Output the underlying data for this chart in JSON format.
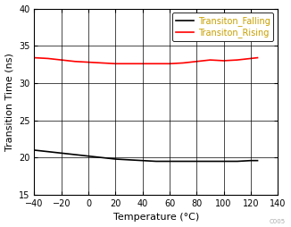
{
  "title": "",
  "xlabel": "Temperature (°C)",
  "ylabel": "Transition Time (ns)",
  "xlim": [
    -40,
    140
  ],
  "ylim": [
    15,
    40
  ],
  "xticks": [
    -40,
    -20,
    0,
    20,
    40,
    60,
    80,
    100,
    120,
    140
  ],
  "yticks": [
    15,
    20,
    25,
    30,
    35,
    40
  ],
  "falling_x": [
    -40,
    -30,
    -20,
    -10,
    0,
    10,
    20,
    30,
    40,
    50,
    60,
    70,
    80,
    90,
    100,
    110,
    120,
    125
  ],
  "falling_y": [
    21.0,
    20.8,
    20.6,
    20.4,
    20.2,
    20.0,
    19.8,
    19.7,
    19.6,
    19.5,
    19.5,
    19.5,
    19.5,
    19.5,
    19.5,
    19.5,
    19.6,
    19.6
  ],
  "rising_x": [
    -40,
    -30,
    -20,
    -10,
    0,
    10,
    20,
    30,
    40,
    50,
    60,
    70,
    80,
    90,
    100,
    110,
    120,
    125
  ],
  "rising_y": [
    33.4,
    33.3,
    33.1,
    32.9,
    32.8,
    32.7,
    32.6,
    32.6,
    32.6,
    32.6,
    32.6,
    32.7,
    32.9,
    33.1,
    33.0,
    33.1,
    33.3,
    33.4
  ],
  "falling_color": "#000000",
  "rising_color": "#ff0000",
  "falling_label": "Transiton_Falling",
  "rising_label": "Transiton_Rising",
  "legend_label_color": "#c8a000",
  "axis_label_color": "#000000",
  "tick_label_color": "#000000",
  "watermark": "C005",
  "watermark_color": "#aaaaaa",
  "grid_color": "#000000",
  "background_color": "#ffffff",
  "line_width": 1.2,
  "font_size_axis_label": 8,
  "font_size_tick": 7,
  "font_size_legend": 7,
  "font_size_watermark": 5
}
